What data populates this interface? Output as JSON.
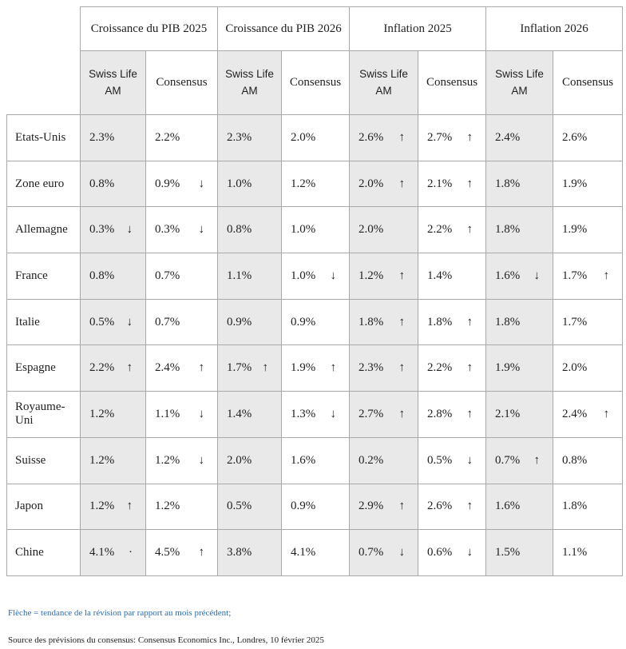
{
  "table": {
    "group_headers": [
      "Croissance du PIB 2025",
      "Croissance du PIB 2026",
      "Inflation 2025",
      "Inflation 2026"
    ],
    "sub_headers": [
      "Swiss Life AM",
      "Consensus",
      "Swiss Life AM",
      "Consensus",
      "Swiss Life AM",
      "Consensus",
      "Swiss Life AM",
      "Consensus"
    ],
    "rows": [
      {
        "country": "Etats-Unis",
        "cells": [
          {
            "v": "2.3%",
            "a": ""
          },
          {
            "v": "2.2%",
            "a": ""
          },
          {
            "v": "2.3%",
            "a": ""
          },
          {
            "v": "2.0%",
            "a": ""
          },
          {
            "v": "2.6%",
            "a": "↑"
          },
          {
            "v": "2.7%",
            "a": "↑"
          },
          {
            "v": "2.4%",
            "a": ""
          },
          {
            "v": "2.6%",
            "a": ""
          }
        ]
      },
      {
        "country": "Zone euro",
        "cells": [
          {
            "v": "0.8%",
            "a": ""
          },
          {
            "v": "0.9%",
            "a": "↓"
          },
          {
            "v": "1.0%",
            "a": ""
          },
          {
            "v": "1.2%",
            "a": ""
          },
          {
            "v": "2.0%",
            "a": "↑"
          },
          {
            "v": "2.1%",
            "a": "↑"
          },
          {
            "v": "1.8%",
            "a": ""
          },
          {
            "v": "1.9%",
            "a": ""
          }
        ]
      },
      {
        "country": "Allemagne",
        "cells": [
          {
            "v": "0.3%",
            "a": "↓"
          },
          {
            "v": "0.3%",
            "a": "↓"
          },
          {
            "v": "0.8%",
            "a": ""
          },
          {
            "v": "1.0%",
            "a": ""
          },
          {
            "v": "2.0%",
            "a": ""
          },
          {
            "v": "2.2%",
            "a": "↑"
          },
          {
            "v": "1.8%",
            "a": ""
          },
          {
            "v": "1.9%",
            "a": ""
          }
        ]
      },
      {
        "country": "France",
        "cells": [
          {
            "v": "0.8%",
            "a": ""
          },
          {
            "v": "0.7%",
            "a": ""
          },
          {
            "v": "1.1%",
            "a": ""
          },
          {
            "v": "1.0%",
            "a": "↓"
          },
          {
            "v": "1.2%",
            "a": "↑"
          },
          {
            "v": "1.4%",
            "a": ""
          },
          {
            "v": "1.6%",
            "a": "↓"
          },
          {
            "v": "1.7%",
            "a": "↑"
          }
        ]
      },
      {
        "country": "Italie",
        "cells": [
          {
            "v": "0.5%",
            "a": "↓"
          },
          {
            "v": "0.7%",
            "a": ""
          },
          {
            "v": "0.9%",
            "a": ""
          },
          {
            "v": "0.9%",
            "a": ""
          },
          {
            "v": "1.8%",
            "a": "↑"
          },
          {
            "v": "1.8%",
            "a": "↑"
          },
          {
            "v": "1.8%",
            "a": ""
          },
          {
            "v": "1.7%",
            "a": ""
          }
        ]
      },
      {
        "country": "Espagne",
        "cells": [
          {
            "v": "2.2%",
            "a": "↑"
          },
          {
            "v": "2.4%",
            "a": "↑"
          },
          {
            "v": "1.7%",
            "a": "↑"
          },
          {
            "v": "1.9%",
            "a": "↑"
          },
          {
            "v": "2.3%",
            "a": "↑"
          },
          {
            "v": "2.2%",
            "a": "↑"
          },
          {
            "v": "1.9%",
            "a": ""
          },
          {
            "v": "2.0%",
            "a": ""
          }
        ]
      },
      {
        "country": "Royaume-Uni",
        "cells": [
          {
            "v": "1.2%",
            "a": ""
          },
          {
            "v": "1.1%",
            "a": "↓"
          },
          {
            "v": "1.4%",
            "a": ""
          },
          {
            "v": "1.3%",
            "a": "↓"
          },
          {
            "v": "2.7%",
            "a": "↑"
          },
          {
            "v": "2.8%",
            "a": "↑"
          },
          {
            "v": "2.1%",
            "a": ""
          },
          {
            "v": "2.4%",
            "a": "↑"
          }
        ]
      },
      {
        "country": "Suisse",
        "cells": [
          {
            "v": "1.2%",
            "a": ""
          },
          {
            "v": "1.2%",
            "a": "↓"
          },
          {
            "v": "2.0%",
            "a": ""
          },
          {
            "v": "1.6%",
            "a": ""
          },
          {
            "v": "0.2%",
            "a": ""
          },
          {
            "v": "0.5%",
            "a": "↓"
          },
          {
            "v": "0.7%",
            "a": "↑"
          },
          {
            "v": "0.8%",
            "a": ""
          }
        ]
      },
      {
        "country": "Japon",
        "cells": [
          {
            "v": "1.2%",
            "a": "↑"
          },
          {
            "v": "1.2%",
            "a": ""
          },
          {
            "v": "0.5%",
            "a": ""
          },
          {
            "v": "0.9%",
            "a": ""
          },
          {
            "v": "2.9%",
            "a": "↑"
          },
          {
            "v": "2.6%",
            "a": "↑"
          },
          {
            "v": "1.6%",
            "a": ""
          },
          {
            "v": "1.8%",
            "a": ""
          }
        ]
      },
      {
        "country": "Chine",
        "cells": [
          {
            "v": "4.1%",
            "a": "·"
          },
          {
            "v": "4.5%",
            "a": "↑"
          },
          {
            "v": "3.8%",
            "a": ""
          },
          {
            "v": "4.1%",
            "a": ""
          },
          {
            "v": "0.7%",
            "a": "↓"
          },
          {
            "v": "0.6%",
            "a": "↓"
          },
          {
            "v": "1.5%",
            "a": ""
          },
          {
            "v": "1.1%",
            "a": ""
          }
        ]
      }
    ]
  },
  "footer": {
    "note": "Flèche = tendance de la révision par rapport au mois précédent;",
    "source": "Source des prévisions du consensus: Consensus Economics Inc., Londres, 10 février 2025"
  },
  "colors": {
    "swiss_cell_bg": "#e9e9e9",
    "border": "#a9a9a9",
    "note_blue": "#2a6db5",
    "text": "#1f1f1f"
  }
}
